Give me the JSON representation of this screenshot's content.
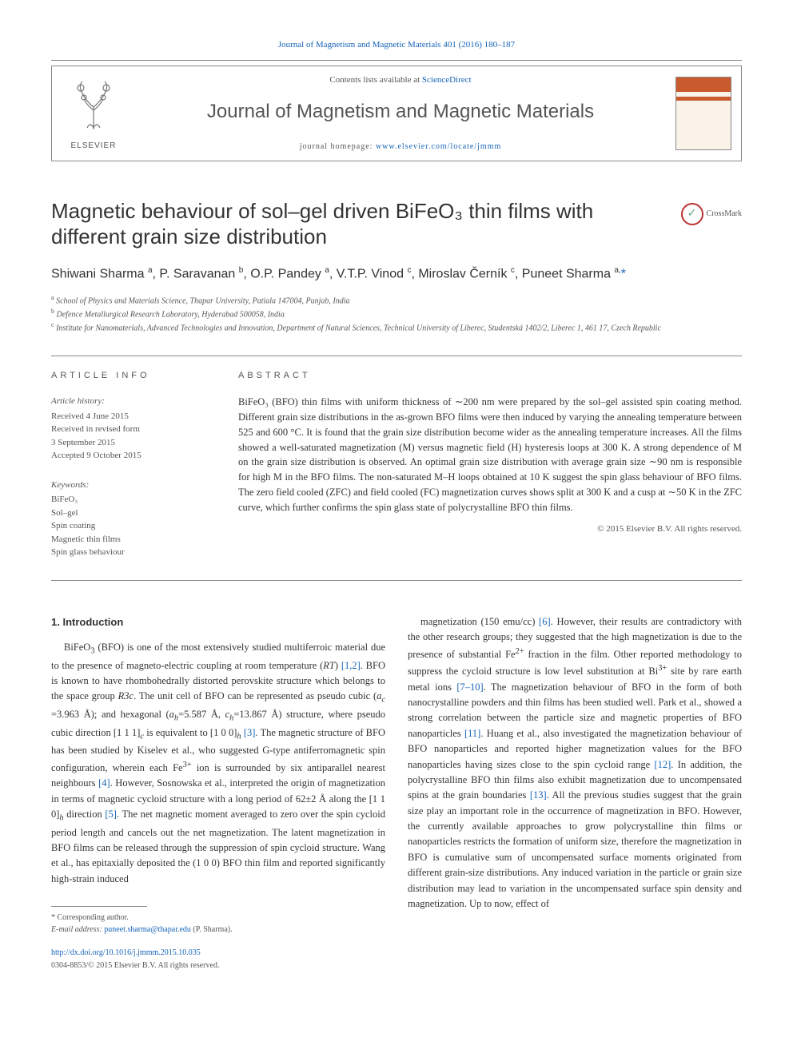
{
  "journal_ref": {
    "prefix": "Journal of Magnetism and Magnetic Materials 401 (2016) 180–187",
    "link_text": "Journal of Magnetism and Magnetic Materials 401 (2016) 180–187"
  },
  "header": {
    "contents_prefix": "Contents lists available at ",
    "contents_link": "ScienceDirect",
    "journal_name": "Journal of Magnetism and Magnetic Materials",
    "homepage_prefix": "journal homepage: ",
    "homepage_link": "www.elsevier.com/locate/jmmm",
    "publisher_logo_text": "ELSEVIER"
  },
  "crossmark_label": "CrossMark",
  "title": "Magnetic behaviour of sol–gel driven BiFeO₃ thin films with different grain size distribution",
  "authors_html": "Shiwani Sharma <sup>a</sup>, P. Saravanan <sup>b</sup>, O.P. Pandey <sup>a</sup>, V.T.P. Vinod <sup>c</sup>, Miroslav Černík <sup>c</sup>, Puneet Sharma <sup>a,</sup><span class='corr'>*</span>",
  "affiliations": [
    {
      "sup": "a",
      "text": "School of Physics and Materials Science, Thapar University, Patiala 147004, Punjab, India"
    },
    {
      "sup": "b",
      "text": "Defence Metallurgical Research Laboratory, Hyderabad 500058, India"
    },
    {
      "sup": "c",
      "text": "Institute for Nanomaterials, Advanced Technologies and Innovation, Department of Natural Sciences, Technical University of Liberec, Studentská 1402/2, Liberec 1, 461 17, Czech Republic"
    }
  ],
  "info": {
    "label": "ARTICLE INFO",
    "history_label": "Article history:",
    "history": [
      "Received 4 June 2015",
      "Received in revised form",
      "3 September 2015",
      "Accepted 9 October 2015"
    ],
    "keywords_label": "Keywords:",
    "keywords": [
      "BiFeO₃",
      "Sol–gel",
      "Spin coating",
      "Magnetic thin films",
      "Spin glass behaviour"
    ]
  },
  "abstract": {
    "label": "ABSTRACT",
    "text": "BiFeO₃ (BFO) thin films with uniform thickness of ∼200 nm were prepared by the sol–gel assisted spin coating method. Different grain size distributions in the as-grown BFO films were then induced by varying the annealing temperature between 525 and 600 °C. It is found that the grain size distribution become wider as the annealing temperature increases. All the films showed a well-saturated magnetization (M) versus magnetic field (H) hysteresis loops at 300 K. A strong dependence of M on the grain size distribution is observed. An optimal grain size distribution with average grain size ∼90 nm is responsible for high M in the BFO films. The non-saturated M–H loops obtained at 10 K suggest the spin glass behaviour of BFO films. The zero field cooled (ZFC) and field cooled (FC) magnetization curves shows split at 300 K and a cusp at ∼50 K in the ZFC curve, which further confirms the spin glass state of polycrystalline BFO thin films.",
    "copyright": "© 2015 Elsevier B.V. All rights reserved."
  },
  "section1": {
    "heading": "1.  Introduction",
    "col1_html": "BiFeO<sub>3</sub> (BFO) is one of the most extensively studied multiferroic material due to the presence of magneto-electric coupling at room temperature (<i>RT</i>) <a href='#'>[1,2]</a>. BFO is known to have rhombohedrally distorted perovskite structure which belongs to the space group <i>R3c</i>. The unit cell of BFO can be represented as pseudo cubic (<i>a<sub>c</sub></i> =3.963 Å); and hexagonal (<i>a<sub>h</sub></i>=5.587 Å, <i>c<sub>h</sub></i>=13.867 Å) structure, where pseudo cubic direction [1 1 1]<sub><i>c</i></sub> is equivalent to [1 0 0]<sub><i>h</i></sub> <a href='#'>[3]</a>. The magnetic structure of BFO has been studied by Kiselev et al., who suggested G-type antiferromagnetic spin configuration, wherein each Fe<sup>3+</sup> ion is surrounded by six antiparallel nearest neighbours <a href='#'>[4]</a>. However, Sosnowska et al., interpreted the origin of magnetization in terms of magnetic cycloid structure with a long period of 62±2 Å along the [1 1 0]<sub><i>h</i></sub> direction <a href='#'>[5]</a>. The net magnetic moment averaged to zero over the spin cycloid period length and cancels out the net magnetization. The latent magnetization in BFO films can be released through the suppression of spin cycloid structure. Wang et al., has epitaxially deposited the (1 0 0) BFO thin film and reported significantly high-strain induced",
    "col2_html": "magnetization (150 emu/cc) <a href='#'>[6]</a>. However, their results are contradictory with the other research groups; they suggested that the high magnetization is due to the presence of substantial Fe<sup>2+</sup> fraction in the film. Other reported methodology to suppress the cycloid structure is low level substitution at Bi<sup>3+</sup> site by rare earth metal ions <a href='#'>[7–10]</a>. The magnetization behaviour of BFO in the form of both nanocrystalline powders and thin films has been studied well. Park et al., showed a strong correlation between the particle size and magnetic properties of BFO nanoparticles <a href='#'>[11]</a>. Huang et al., also investigated the magnetization behaviour of BFO nanoparticles and reported higher magnetization values for the BFO nanoparticles having sizes close to the spin cycloid range <a href='#'>[12]</a>. In addition, the polycrystalline BFO thin films also exhibit magnetization due to uncompensated spins at the grain boundaries <a href='#'>[13]</a>. All the previous studies suggest that the grain size play an important role in the occurrence of magnetization in BFO. However, the currently available approaches to grow polycrystalline thin films or nanoparticles restricts the formation of uniform size, therefore the magnetization in BFO is cumulative sum of uncompensated surface moments originated from different grain-size distributions. Any induced variation in the particle or grain size distribution may lead to variation in the uncompensated surface spin density and magnetization. Up to now, effect of"
  },
  "footnote": {
    "corr_label": "* Corresponding author.",
    "email_label": "E-mail address: ",
    "email": "puneet.sharma@thapar.edu",
    "email_suffix": " (P. Sharma)."
  },
  "doi": {
    "link": "http://dx.doi.org/10.1016/j.jmmm.2015.10.035",
    "issn": "0304-8853/© 2015 Elsevier B.V. All rights reserved."
  }
}
